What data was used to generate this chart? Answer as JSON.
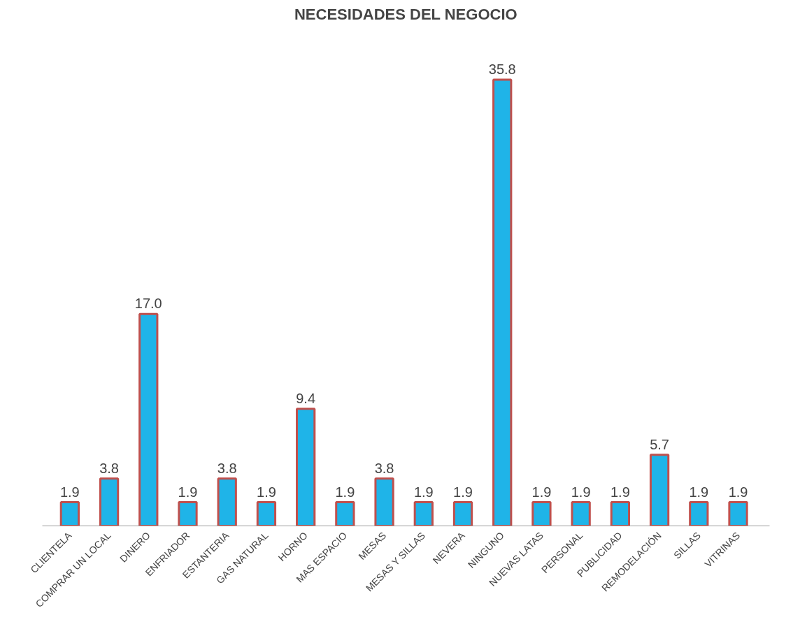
{
  "chart_data": {
    "type": "bar",
    "title": "NECESIDADES DEL NEGOCIO",
    "categories": [
      "CLIENTELA",
      "COMPRAR UN LOCAL",
      "DINERO",
      "ENFRIADOR",
      "ESTANTERIA",
      "GAS NATURAL",
      "HORNO",
      "MAS ESPACIO",
      "MESAS",
      "MESAS Y SILLAS",
      "NEVERA",
      "NINGUNO",
      "NUEVAS LATAS",
      "PERSONAL",
      "PUBLICIDAD",
      "REMODELACIÓN",
      "SILLAS",
      "VITRINAS"
    ],
    "values": [
      1.9,
      3.8,
      17.0,
      1.9,
      3.8,
      1.9,
      9.4,
      1.9,
      3.8,
      1.9,
      1.9,
      35.8,
      1.9,
      1.9,
      1.9,
      5.7,
      1.9,
      1.9
    ],
    "value_labels": [
      "1.9",
      "3.8",
      "17.0",
      "1.9",
      "3.8",
      "1.9",
      "9.4",
      "1.9",
      "3.8",
      "1.9",
      "1.9",
      "35.8",
      "1.9",
      "1.9",
      "1.9",
      "5.7",
      "1.9",
      "1.9"
    ],
    "color": "#1fb4e8",
    "grid": false,
    "tick_labels": "x"
  }
}
